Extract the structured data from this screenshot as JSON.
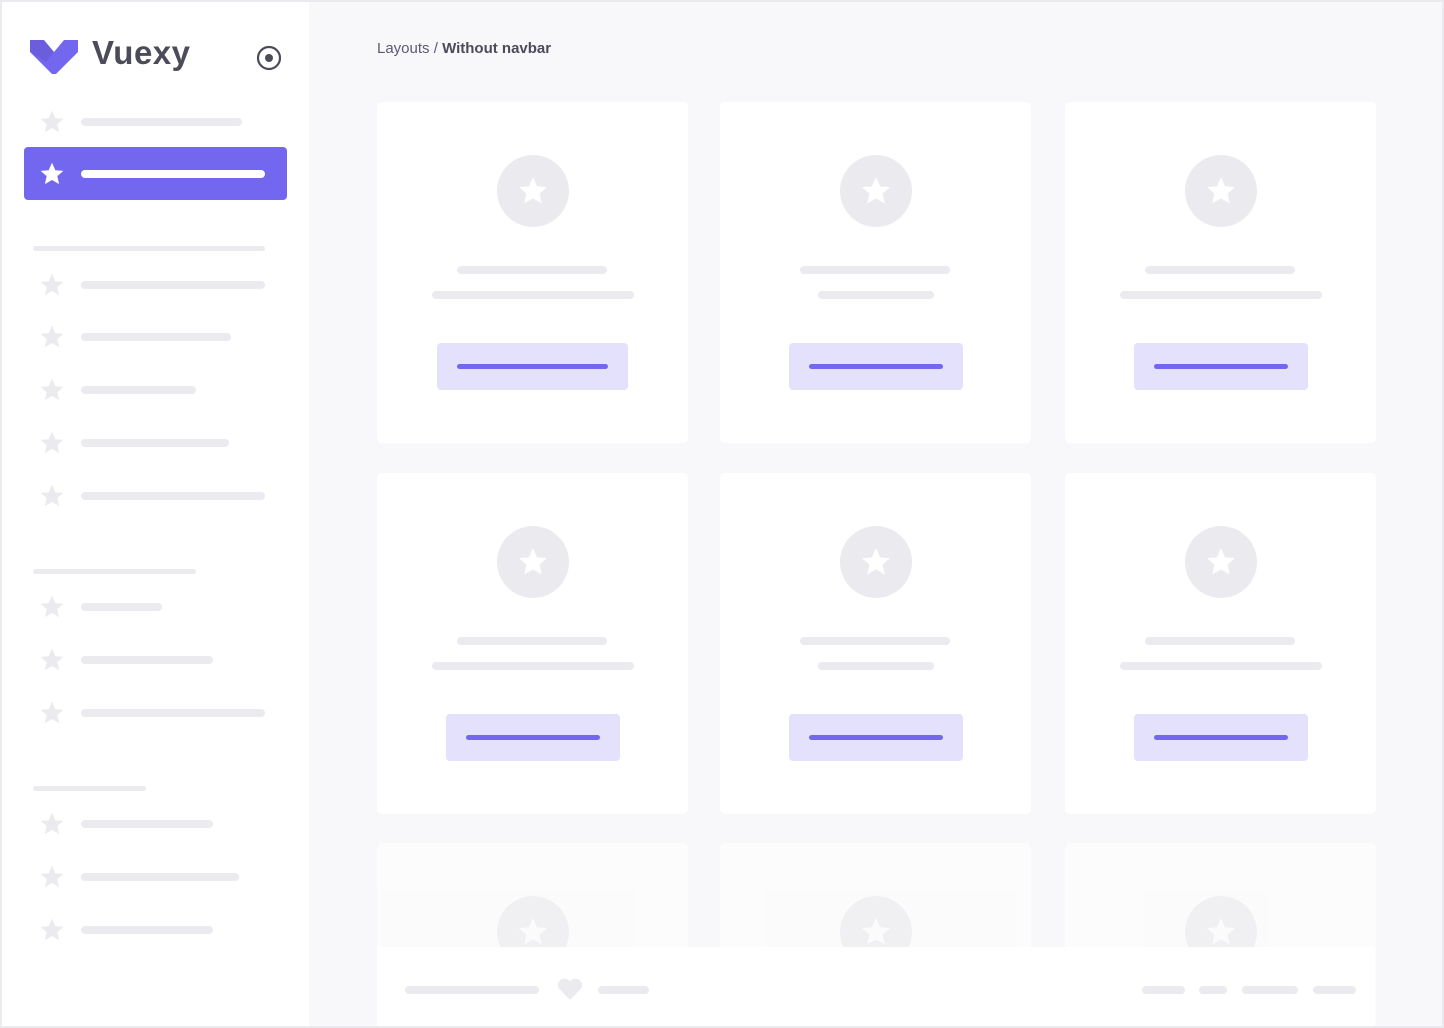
{
  "sidebar": {
    "brand": "Vuexy",
    "brand_color": "#7367f0",
    "toggle_icon": "radio-circle-icon",
    "item_icon": "star-icon"
  },
  "breadcrumb": {
    "parent": "Layouts",
    "separator": "/",
    "current": "Without navbar"
  },
  "footer": {
    "icon": "heart-icon"
  }
}
